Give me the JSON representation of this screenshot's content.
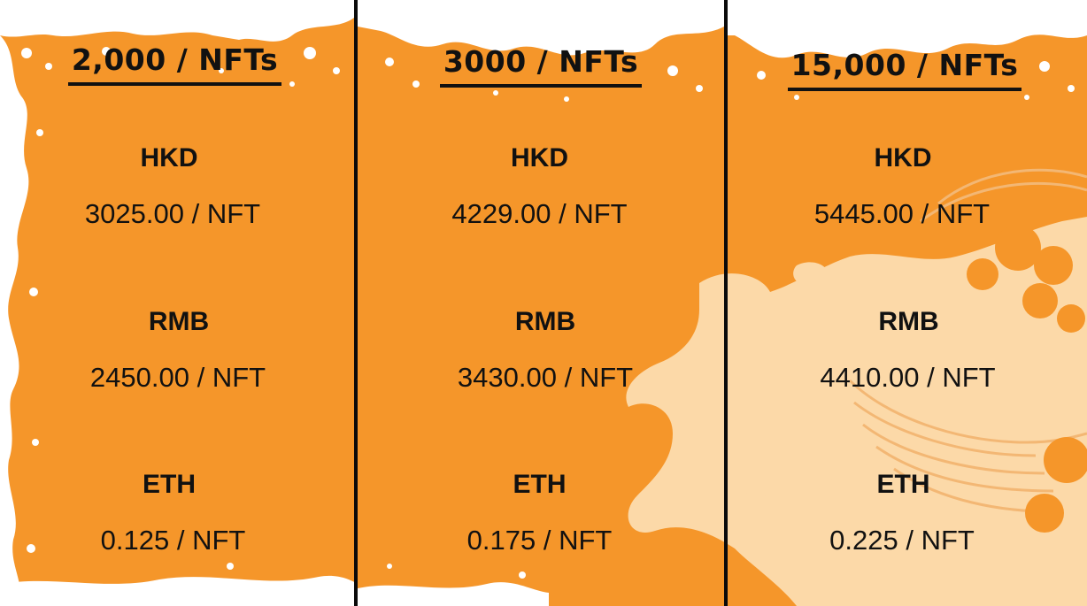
{
  "colors": {
    "background": "#f5962a",
    "splatter": "#ffffff",
    "map_shape": "#fcd9a8",
    "text": "#111111",
    "divider": "#0a0a0a"
  },
  "tiers": [
    {
      "title": "2,000 / NFTs",
      "prices": [
        {
          "currency": "HKD",
          "value": "3025.00 / NFT"
        },
        {
          "currency": "RMB",
          "value": "2450.00 / NFT"
        },
        {
          "currency": "ETH",
          "value": "0.125 / NFT"
        }
      ]
    },
    {
      "title": "3000 / NFTs",
      "prices": [
        {
          "currency": "HKD",
          "value": "4229.00 / NFT"
        },
        {
          "currency": "RMB",
          "value": "3430.00 / NFT"
        },
        {
          "currency": "ETH",
          "value": "0.175 / NFT"
        }
      ]
    },
    {
      "title": "15,000 / NFTs",
      "prices": [
        {
          "currency": "HKD",
          "value": "5445.00 / NFT"
        },
        {
          "currency": "RMB",
          "value": "4410.00 / NFT"
        },
        {
          "currency": "ETH",
          "value": "0.225 / NFT"
        }
      ]
    }
  ]
}
